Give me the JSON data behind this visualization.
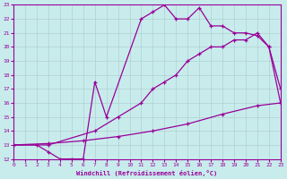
{
  "xlabel": "Windchill (Refroidissement éolien,°C)",
  "bg_color": "#c8ecec",
  "grid_color": "#b0d0d0",
  "line_color": "#990099",
  "xlim": [
    0,
    23
  ],
  "ylim": [
    12,
    23
  ],
  "xticks": [
    0,
    1,
    2,
    3,
    4,
    5,
    6,
    7,
    8,
    9,
    10,
    11,
    12,
    13,
    14,
    15,
    16,
    17,
    18,
    19,
    20,
    21,
    22,
    23
  ],
  "yticks": [
    12,
    13,
    14,
    15,
    16,
    17,
    18,
    19,
    20,
    21,
    22,
    23
  ],
  "curve1_x": [
    0,
    2,
    3,
    4,
    5,
    6,
    7,
    8,
    11,
    12,
    13,
    14,
    15,
    16,
    17,
    18,
    19,
    20,
    21,
    22,
    23
  ],
  "curve1_y": [
    13,
    13,
    12.5,
    12,
    12,
    12,
    17.5,
    15,
    22,
    22.5,
    23,
    22,
    22,
    22.8,
    21.5,
    21.5,
    21,
    21,
    20.8,
    20,
    17
  ],
  "curve2_x": [
    0,
    3,
    7,
    9,
    11,
    12,
    13,
    14,
    15,
    16,
    17,
    18,
    19,
    20,
    21,
    22,
    23
  ],
  "curve2_y": [
    13,
    13,
    14,
    15,
    16,
    17,
    17.5,
    18,
    19,
    19.5,
    20,
    20,
    20.5,
    20.5,
    21,
    20,
    16
  ],
  "curve3_x": [
    0,
    3,
    6,
    9,
    12,
    15,
    18,
    21,
    23
  ],
  "curve3_y": [
    13,
    13.1,
    13.3,
    13.6,
    14.0,
    14.5,
    15.2,
    15.8,
    16.0
  ]
}
